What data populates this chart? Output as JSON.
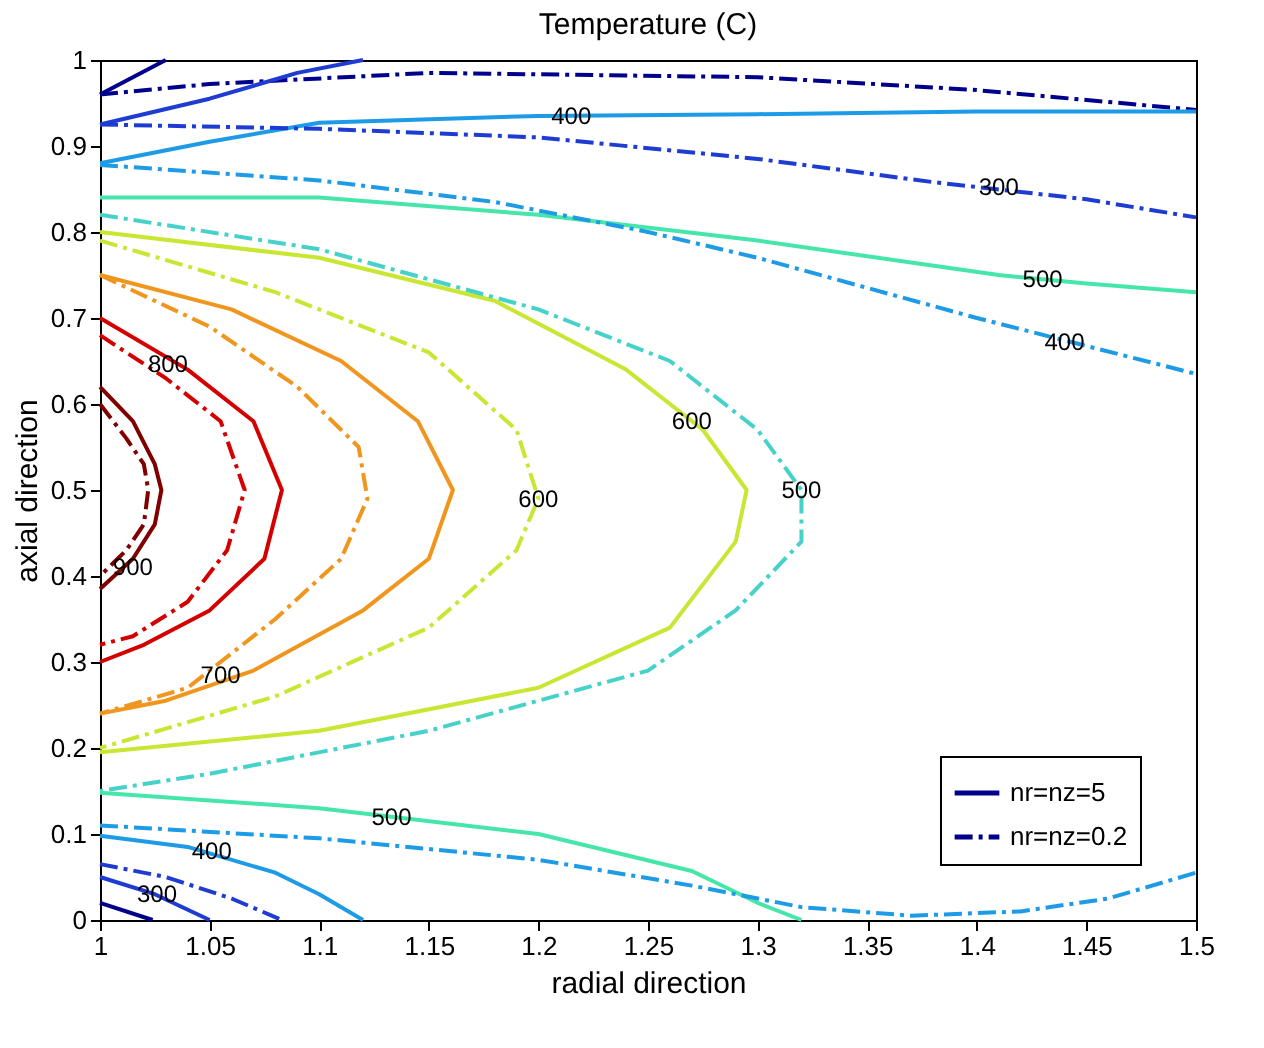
{
  "chart_data": {
    "type": "line",
    "title": "Temperature (C)",
    "xlabel": "radial direction",
    "ylabel": "axial direction",
    "xlim": [
      1,
      1.5
    ],
    "xticks": [
      1,
      1.05,
      1.1,
      1.15,
      1.2,
      1.25,
      1.3,
      1.35,
      1.4,
      1.45,
      1.5
    ],
    "ylim": [
      0,
      1
    ],
    "yticks": [
      0,
      0.1,
      0.2,
      0.3,
      0.4,
      0.5,
      0.6,
      0.7,
      0.8,
      0.9,
      1
    ],
    "grid": false,
    "legend": "bottom right",
    "marker": "none",
    "series": [
      {
        "name": "nr=nz=5",
        "line_style": "solid",
        "color": "#00008c",
        "x": [
          1,
          1.024
        ],
        "values": [
          0.02,
          0
        ]
      },
      {
        "name": "nr=nz=0.2",
        "line_style": "dashed",
        "color": "#00008c",
        "x": [
          1,
          1.05,
          1.15,
          1.3,
          1.4,
          1.5
        ],
        "values": [
          0.96,
          0.972,
          0.985,
          0.98,
          0.965,
          0.942
        ]
      },
      {
        "line_style": "solid",
        "color": "#800000",
        "x": [
          1,
          1.015,
          1.025,
          1.028,
          1.025,
          1.015,
          1
        ],
        "values": [
          0.62,
          0.58,
          0.53,
          0.5,
          0.46,
          0.42,
          0.385
        ]
      },
      {
        "line_style": "dashed",
        "color": "#800000",
        "x": [
          1,
          1.012,
          1.02,
          1.022,
          1.02,
          1.012,
          1
        ],
        "values": [
          0.6,
          0.56,
          0.53,
          0.5,
          0.46,
          0.43,
          0.4
        ]
      },
      {
        "line_style": "solid",
        "color": "#d40000",
        "x": [
          1,
          1.04,
          1.07,
          1.083,
          1.075,
          1.05,
          1.02,
          1
        ],
        "values": [
          0.7,
          0.64,
          0.58,
          0.5,
          0.42,
          0.36,
          0.32,
          0.3
        ]
      },
      {
        "line_style": "dashed",
        "color": "#d40000",
        "x": [
          1,
          1.03,
          1.055,
          1.066,
          1.058,
          1.04,
          1.015,
          1
        ],
        "values": [
          0.68,
          0.63,
          0.58,
          0.5,
          0.43,
          0.37,
          0.33,
          0.32
        ]
      },
      {
        "line_style": "solid",
        "color": "#f0961e",
        "x": [
          1,
          1.06,
          1.11,
          1.145,
          1.161,
          1.15,
          1.12,
          1.07,
          1.03,
          1
        ],
        "values": [
          0.75,
          0.71,
          0.65,
          0.58,
          0.5,
          0.42,
          0.36,
          0.29,
          0.255,
          0.24
        ]
      },
      {
        "line_style": "dashed",
        "color": "#f0961e",
        "x": [
          1,
          1.05,
          1.09,
          1.118,
          1.122,
          1.11,
          1.08,
          1.04,
          1
        ],
        "values": [
          0.75,
          0.69,
          0.62,
          0.55,
          0.49,
          0.42,
          0.35,
          0.27,
          0.24
        ]
      },
      {
        "line_style": "solid",
        "color": "#c8e632",
        "x": [
          1,
          1.1,
          1.18,
          1.24,
          1.275,
          1.295,
          1.29,
          1.26,
          1.2,
          1.1,
          1
        ],
        "values": [
          0.8,
          0.77,
          0.72,
          0.64,
          0.57,
          0.5,
          0.44,
          0.34,
          0.27,
          0.22,
          0.195
        ]
      },
      {
        "line_style": "dashed",
        "color": "#c8e632",
        "x": [
          1,
          1.08,
          1.15,
          1.19,
          1.2,
          1.19,
          1.15,
          1.08,
          1
        ],
        "values": [
          0.79,
          0.73,
          0.66,
          0.57,
          0.49,
          0.43,
          0.34,
          0.26,
          0.2
        ]
      },
      {
        "line_style": "solid",
        "color": "#46e6aa",
        "x": [
          1,
          1.1,
          1.2,
          1.3,
          1.41,
          1.45,
          1.5
        ],
        "values": [
          0.84,
          0.84,
          0.82,
          0.79,
          0.75,
          0.74,
          0.73
        ]
      },
      {
        "line_style": "dashed",
        "color": "#46d2c8",
        "x": [
          1,
          1.1,
          1.2,
          1.26,
          1.3,
          1.32,
          1.32,
          1.29,
          1.25,
          1.15,
          1.05,
          1
        ],
        "values": [
          0.82,
          0.78,
          0.71,
          0.65,
          0.57,
          0.5,
          0.44,
          0.36,
          0.29,
          0.22,
          0.17,
          0.15
        ]
      },
      {
        "line_style": "solid",
        "color": "#46e6aa",
        "x": [
          1,
          1.1,
          1.2,
          1.27,
          1.3,
          1.32
        ],
        "values": [
          0.148,
          0.13,
          0.1,
          0.057,
          0.02,
          0
        ]
      },
      {
        "line_style": "dashed",
        "color": "#1e9be6",
        "x": [
          1,
          1.1,
          1.2,
          1.27,
          1.32,
          1.37,
          1.42,
          1.46,
          1.5
        ],
        "values": [
          0.11,
          0.095,
          0.07,
          0.04,
          0.015,
          0.005,
          0.01,
          0.025,
          0.055
        ]
      },
      {
        "line_style": "solid",
        "color": "#1e9be6",
        "x": [
          1,
          1.04,
          1.08,
          1.1,
          1.12
        ],
        "values": [
          0.098,
          0.085,
          0.055,
          0.03,
          0
        ]
      },
      {
        "line_style": "dashed",
        "color": "#1e3cd2",
        "x": [
          1,
          1.03,
          1.06,
          1.083
        ],
        "values": [
          0.065,
          0.05,
          0.025,
          0
        ]
      },
      {
        "line_style": "solid",
        "color": "#1e3cd2",
        "x": [
          1,
          1.025,
          1.05
        ],
        "values": [
          0.05,
          0.03,
          0
        ]
      },
      {
        "line_style": "solid",
        "color": "#1e9be6",
        "x": [
          1,
          1.05,
          1.1,
          1.2,
          1.3,
          1.4,
          1.5
        ],
        "values": [
          0.88,
          0.905,
          0.927,
          0.935,
          0.937,
          0.94,
          0.94
        ]
      },
      {
        "line_style": "dashed",
        "color": "#1e9be6",
        "x": [
          1,
          1.1,
          1.18,
          1.25,
          1.3,
          1.4,
          1.5
        ],
        "values": [
          0.878,
          0.86,
          0.835,
          0.8,
          0.77,
          0.7,
          0.635
        ]
      },
      {
        "line_style": "dashed",
        "color": "#1e3cd2",
        "x": [
          1,
          1.1,
          1.2,
          1.3,
          1.38,
          1.45,
          1.5
        ],
        "values": [
          0.925,
          0.92,
          0.91,
          0.885,
          0.858,
          0.838,
          0.817
        ]
      },
      {
        "line_style": "solid",
        "color": "#1e3cd2",
        "x": [
          1,
          1.05,
          1.09,
          1.12
        ],
        "values": [
          0.925,
          0.955,
          0.985,
          1
        ]
      },
      {
        "line_style": "solid",
        "color": "#00008c",
        "x": [
          1,
          1.03
        ],
        "values": [
          0.96,
          1
        ]
      }
    ],
    "annotations": [
      {
        "text": "400",
        "x": 1.215,
        "y": 0.935
      },
      {
        "text": "300",
        "x": 1.41,
        "y": 0.852
      },
      {
        "text": "500",
        "x": 1.43,
        "y": 0.745
      },
      {
        "text": "400",
        "x": 1.44,
        "y": 0.672
      },
      {
        "text": "800",
        "x": 1.031,
        "y": 0.646
      },
      {
        "text": "600",
        "x": 1.27,
        "y": 0.58
      },
      {
        "text": "600",
        "x": 1.2,
        "y": 0.49
      },
      {
        "text": "500",
        "x": 1.32,
        "y": 0.5
      },
      {
        "text": "900",
        "x": 1.015,
        "y": 0.41
      },
      {
        "text": "700",
        "x": 1.055,
        "y": 0.285
      },
      {
        "text": "500",
        "x": 1.133,
        "y": 0.12
      },
      {
        "text": "400",
        "x": 1.051,
        "y": 0.08
      },
      {
        "text": "300",
        "x": 1.026,
        "y": 0.03
      }
    ]
  }
}
